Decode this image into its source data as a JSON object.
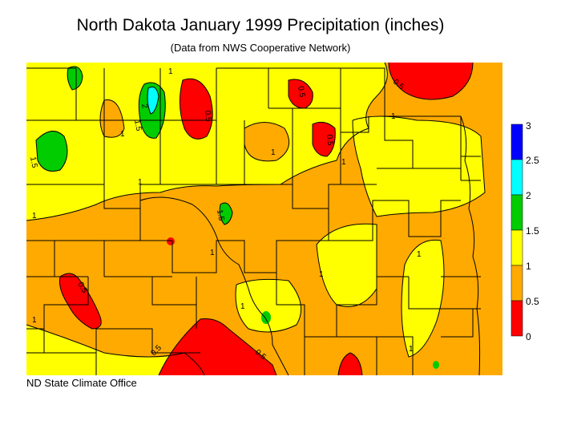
{
  "title": "North Dakota January 1999 Precipitation (inches)",
  "subtitle": "(Data from NWS Cooperative Network)",
  "credit": "ND State Climate Office",
  "legend": [
    {
      "label": "3",
      "color": "#0000ff"
    },
    {
      "label": "2.5",
      "color": "#00ffff"
    },
    {
      "label": "2",
      "color": "#00cc00"
    },
    {
      "label": "1.5",
      "color": "#ffff00"
    },
    {
      "label": "1",
      "color": "#ffaa00"
    },
    {
      "label": "0.5",
      "color": "#ff0000"
    },
    {
      "label": "0",
      "color": ""
    }
  ],
  "contour_labels": [
    "0.5",
    "1",
    "1.5",
    "2"
  ]
}
